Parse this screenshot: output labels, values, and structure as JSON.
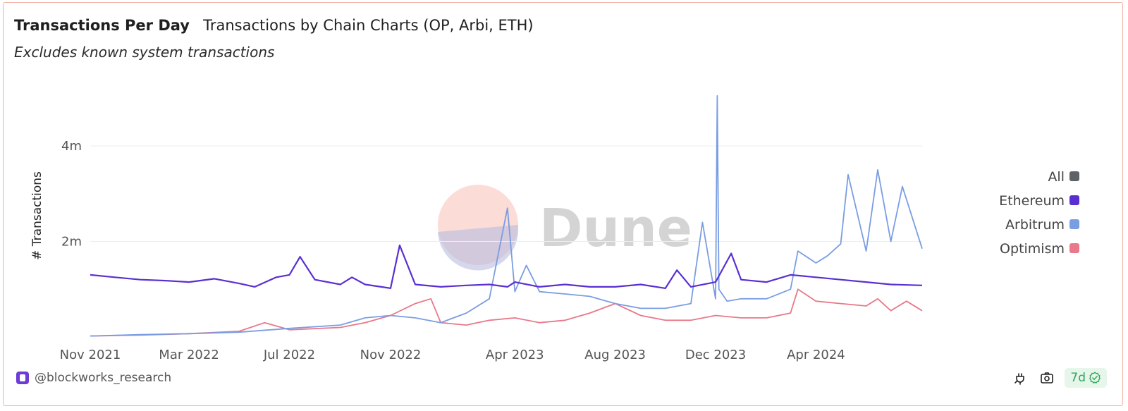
{
  "header": {
    "title": "Transactions Per Day",
    "chart_name": "Transactions by Chain Charts (OP, Arbi, ETH)",
    "note": "Excludes known system transactions"
  },
  "watermark": "Dune",
  "footer": {
    "author": "@blockworks_research",
    "refresh_badge": "7d",
    "icons": [
      "plug-icon",
      "camera-icon",
      "check-circle-icon"
    ]
  },
  "colors": {
    "All": "#5f6368",
    "Ethereum": "#5a2fd1",
    "Arbitrum": "#7a9de3",
    "Optimism": "#e8788a",
    "grid": "#eeeeee",
    "badge_text": "#2fa65a",
    "badge_bg": "#e6f6ea"
  },
  "chart_data": {
    "type": "line",
    "title": "Transactions Per Day",
    "ylabel": "# Transactions",
    "xlabel": "",
    "ylim": [
      0,
      5.3
    ],
    "y_unit": "m",
    "y_ticks": [
      {
        "value": 2,
        "label": "2m"
      },
      {
        "value": 4,
        "label": "4m"
      }
    ],
    "x_ticks": [
      {
        "date": "2021-11-01",
        "label": "Nov 2021"
      },
      {
        "date": "2022-03-01",
        "label": "Mar 2022"
      },
      {
        "date": "2022-07-01",
        "label": "Jul 2022"
      },
      {
        "date": "2022-11-01",
        "label": "Nov 2022"
      },
      {
        "date": "2023-04-01",
        "label": "Apr 2023"
      },
      {
        "date": "2023-08-01",
        "label": "Aug 2023"
      },
      {
        "date": "2023-12-01",
        "label": "Dec 2023"
      },
      {
        "date": "2024-04-01",
        "label": "Apr 2024"
      }
    ],
    "xlim": [
      "2021-11-01",
      "2024-08-08"
    ],
    "grid": "horizontal",
    "legend_position": "right",
    "legend": [
      "All",
      "Ethereum",
      "Arbitrum",
      "Optimism"
    ],
    "series": [
      {
        "name": "Ethereum",
        "x": [
          "2021-11-01",
          "2021-12-01",
          "2022-01-01",
          "2022-02-01",
          "2022-03-01",
          "2022-04-01",
          "2022-05-01",
          "2022-05-20",
          "2022-06-15",
          "2022-07-01",
          "2022-07-14",
          "2022-08-01",
          "2022-09-01",
          "2022-09-15",
          "2022-10-01",
          "2022-11-01",
          "2022-11-12",
          "2022-12-01",
          "2023-01-01",
          "2023-02-01",
          "2023-03-01",
          "2023-03-23",
          "2023-04-01",
          "2023-05-01",
          "2023-06-01",
          "2023-07-01",
          "2023-08-01",
          "2023-09-01",
          "2023-10-01",
          "2023-10-15",
          "2023-11-01",
          "2023-12-01",
          "2023-12-20",
          "2024-01-01",
          "2024-02-01",
          "2024-03-01",
          "2024-04-01",
          "2024-05-01",
          "2024-06-01",
          "2024-07-01",
          "2024-08-08"
        ],
        "y": [
          1.3,
          1.25,
          1.2,
          1.18,
          1.15,
          1.22,
          1.12,
          1.05,
          1.25,
          1.3,
          1.68,
          1.2,
          1.1,
          1.25,
          1.1,
          1.02,
          1.92,
          1.1,
          1.05,
          1.08,
          1.1,
          1.05,
          1.15,
          1.05,
          1.1,
          1.05,
          1.05,
          1.1,
          1.02,
          1.4,
          1.05,
          1.15,
          1.75,
          1.2,
          1.15,
          1.3,
          1.25,
          1.2,
          1.15,
          1.1,
          1.08
        ]
      },
      {
        "name": "Arbitrum",
        "x": [
          "2021-11-01",
          "2022-01-01",
          "2022-03-01",
          "2022-05-01",
          "2022-07-01",
          "2022-09-01",
          "2022-10-01",
          "2022-11-01",
          "2022-12-01",
          "2023-01-01",
          "2023-02-01",
          "2023-03-01",
          "2023-03-23",
          "2023-04-01",
          "2023-04-15",
          "2023-05-01",
          "2023-06-01",
          "2023-07-01",
          "2023-08-01",
          "2023-09-01",
          "2023-10-01",
          "2023-11-01",
          "2023-11-15",
          "2023-12-01",
          "2023-12-03",
          "2023-12-05",
          "2023-12-15",
          "2024-01-01",
          "2024-02-01",
          "2024-03-01",
          "2024-03-10",
          "2024-04-01",
          "2024-04-15",
          "2024-05-01",
          "2024-05-10",
          "2024-06-01",
          "2024-06-15",
          "2024-07-01",
          "2024-07-15",
          "2024-08-08"
        ],
        "y": [
          0.02,
          0.05,
          0.07,
          0.1,
          0.18,
          0.25,
          0.4,
          0.45,
          0.4,
          0.3,
          0.5,
          0.8,
          2.7,
          0.95,
          1.5,
          0.95,
          0.9,
          0.85,
          0.7,
          0.6,
          0.6,
          0.7,
          2.4,
          0.8,
          5.05,
          1.0,
          0.75,
          0.8,
          0.8,
          1.0,
          1.8,
          1.55,
          1.7,
          1.95,
          3.4,
          1.8,
          3.5,
          2.0,
          3.15,
          1.85
        ]
      },
      {
        "name": "Optimism",
        "x": [
          "2021-11-01",
          "2022-01-01",
          "2022-03-01",
          "2022-05-01",
          "2022-06-01",
          "2022-07-01",
          "2022-09-01",
          "2022-10-01",
          "2022-11-01",
          "2022-12-01",
          "2022-12-20",
          "2023-01-01",
          "2023-02-01",
          "2023-03-01",
          "2023-04-01",
          "2023-05-01",
          "2023-06-01",
          "2023-07-01",
          "2023-08-01",
          "2023-09-01",
          "2023-10-01",
          "2023-11-01",
          "2023-12-01",
          "2024-01-01",
          "2024-02-01",
          "2024-03-01",
          "2024-03-10",
          "2024-04-01",
          "2024-05-01",
          "2024-06-01",
          "2024-06-15",
          "2024-07-01",
          "2024-07-20",
          "2024-08-08"
        ],
        "y": [
          0.02,
          0.04,
          0.07,
          0.12,
          0.3,
          0.15,
          0.2,
          0.3,
          0.45,
          0.7,
          0.8,
          0.3,
          0.25,
          0.35,
          0.4,
          0.3,
          0.35,
          0.5,
          0.7,
          0.45,
          0.35,
          0.35,
          0.45,
          0.4,
          0.4,
          0.5,
          1.0,
          0.75,
          0.7,
          0.65,
          0.8,
          0.55,
          0.75,
          0.55
        ]
      }
    ]
  }
}
